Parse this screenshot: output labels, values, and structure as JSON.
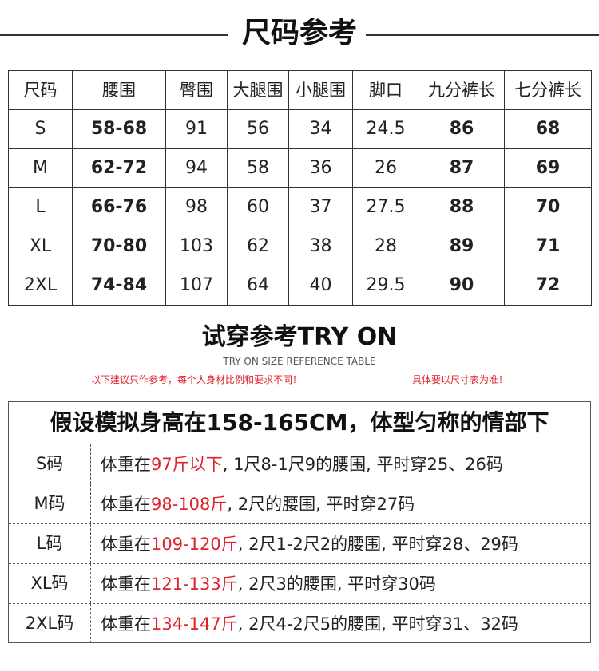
{
  "title": "尺码参考",
  "size_table": {
    "headers": [
      "尺码",
      "腰围",
      "臀围",
      "大腿围",
      "小腿围",
      "脚口",
      "九分裤长",
      "七分裤长"
    ],
    "rows": [
      [
        "S",
        "58-68",
        "91",
        "56",
        "34",
        "24.5",
        "86",
        "68"
      ],
      [
        "M",
        "62-72",
        "94",
        "58",
        "36",
        "26",
        "87",
        "69"
      ],
      [
        "L",
        "66-76",
        "98",
        "60",
        "37",
        "27.5",
        "88",
        "70"
      ],
      [
        "XL",
        "70-80",
        "103",
        "62",
        "38",
        "28",
        "89",
        "71"
      ],
      [
        "2XL",
        "74-84",
        "107",
        "64",
        "40",
        "29.5",
        "90",
        "72"
      ]
    ]
  },
  "try_on": {
    "title": "试穿参考TRY ON",
    "subtitle": "TRY ON SIZE REFERENCE TABLE",
    "note_left": "以下建议只作参考，每个人身材比例和要求不同！",
    "note_right": "具体要以尺寸表为准！",
    "box_title": "假设模拟身高在158-165CM，体型匀称的情部下",
    "rows": [
      {
        "size": "S码",
        "pre": "体重在",
        "weight": "97斤以下",
        "post": ", 1尺8-1尺9的腰围, 平时穿25、26码"
      },
      {
        "size": "M码",
        "pre": "体重在",
        "weight": "98-108斤",
        "post": ", 2尺的腰围, 平时穿27码"
      },
      {
        "size": "L码",
        "pre": "体重在",
        "weight": "109-120斤",
        "post": ", 2尺1-2尺2的腰围, 平时穿28、29码"
      },
      {
        "size": "XL码",
        "pre": "体重在",
        "weight": "121-133斤",
        "post": ", 2尺3的腰围, 平时穿30码"
      },
      {
        "size": "2XL码",
        "pre": "体重在",
        "weight": "134-147斤",
        "post": ", 2尺4-2尺5的腰围, 平时穿31、32码"
      }
    ]
  },
  "colors": {
    "highlight": "#e0202a",
    "text": "#222222"
  }
}
